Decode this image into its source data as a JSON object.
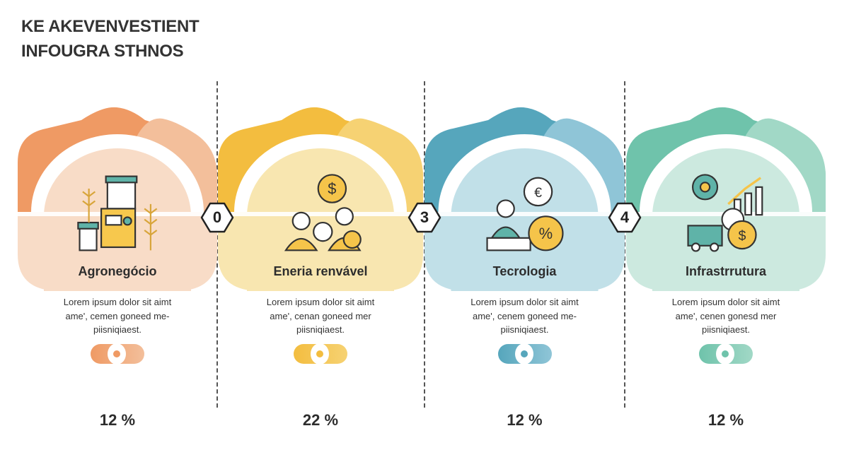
{
  "title": {
    "line1": "KE AKEVENVESTIENT",
    "line2": "INFOUGRA  STHNOS"
  },
  "badges": [
    "0",
    "3",
    "4"
  ],
  "cards": [
    {
      "label": "Agronegócio",
      "desc": [
        "Lorem ipsum dolor sit aimt",
        "ame', cemen goneed me-",
        "piisniqiaest."
      ],
      "percent": "12 %",
      "icon": "agriculture-icon",
      "colors": {
        "dark": "#ef9a64",
        "light": "#f3bf9b",
        "pastel": "#f8dcc7"
      }
    },
    {
      "label": "Eneria renvável",
      "desc": [
        "Lorem ipsum dolor sit aimt",
        "ame', cenan goneed mer",
        "piisniqiaest."
      ],
      "percent": "22 %",
      "icon": "people-money-icon",
      "colors": {
        "dark": "#f3bd3f",
        "light": "#f6d273",
        "pastel": "#f8e6b0"
      }
    },
    {
      "label": "Tecrologia",
      "desc": [
        "Lorem ipsum dolor sit aimt",
        "ame', cenem goneed me-",
        "piisniqiaest."
      ],
      "percent": "12 %",
      "icon": "technology-finance-icon",
      "colors": {
        "dark": "#56a6bc",
        "light": "#8fc5d7",
        "pastel": "#c1e0e8"
      }
    },
    {
      "label": "Infrastrrutura",
      "desc": [
        "Lorem ipsum dolor sit aimt",
        "ame', cenen gonesd mer",
        "piisniqiaest."
      ],
      "percent": "12 %",
      "icon": "infrastructure-gears-icon",
      "colors": {
        "dark": "#6fc3ab",
        "light": "#a1d8c6",
        "pastel": "#cce9df"
      }
    }
  ]
}
